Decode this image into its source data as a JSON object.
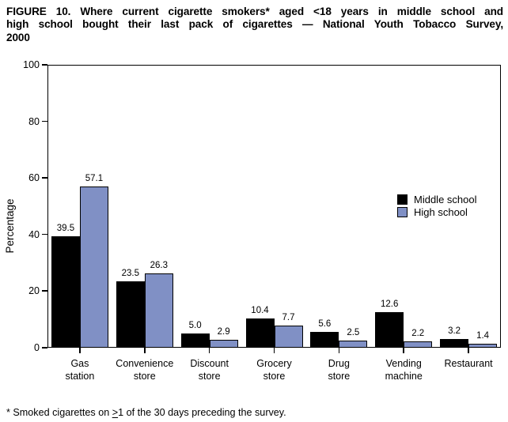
{
  "figure": {
    "title_line1": "FIGURE 10. Where current cigarette smokers* aged <18 years in middle school and",
    "title_line2": "high school bought their last pack of cigarettes — National Youth Tobacco Survey,",
    "title_line3": "2000",
    "footnote_prefix": "* Smoked cigarettes on ",
    "footnote_geq": ">",
    "footnote_suffix": "1 of the 30 days preceding the survey."
  },
  "colors": {
    "middle_school": "#000000",
    "high_school": "#8090C5",
    "axis": "#000000",
    "background": "#FFFFFF"
  },
  "chart_data": {
    "type": "bar",
    "title": "",
    "xlabel": "",
    "ylabel": "Percentage",
    "ylim": [
      0,
      100
    ],
    "yticks": [
      0,
      20,
      40,
      60,
      80,
      100
    ],
    "grid": false,
    "legend_position": "middle-right",
    "categories": [
      "Gas station",
      "Convenience store",
      "Discount store",
      "Grocery store",
      "Drug store",
      "Vending machine",
      "Restaurant"
    ],
    "category_lines": [
      [
        "Gas",
        "station"
      ],
      [
        "Convenience",
        "store"
      ],
      [
        "Discount",
        "store"
      ],
      [
        "Grocery",
        "store"
      ],
      [
        "Drug",
        "store"
      ],
      [
        "Vending",
        "machine"
      ],
      [
        "Restaurant"
      ]
    ],
    "series": [
      {
        "name": "Middle school",
        "color": "#000000",
        "values": [
          39.5,
          23.5,
          5.0,
          10.4,
          5.6,
          12.6,
          3.2
        ],
        "labels": [
          "39.5",
          "23.5",
          "5.0",
          "10.4",
          "5.6",
          "12.6",
          "3.2"
        ]
      },
      {
        "name": "High school",
        "color": "#8090C5",
        "values": [
          57.1,
          26.3,
          2.9,
          7.7,
          2.5,
          2.2,
          1.4
        ],
        "labels": [
          "57.1",
          "26.3",
          "2.9",
          "7.7",
          "2.5",
          "2.2",
          "1.4"
        ]
      }
    ]
  }
}
